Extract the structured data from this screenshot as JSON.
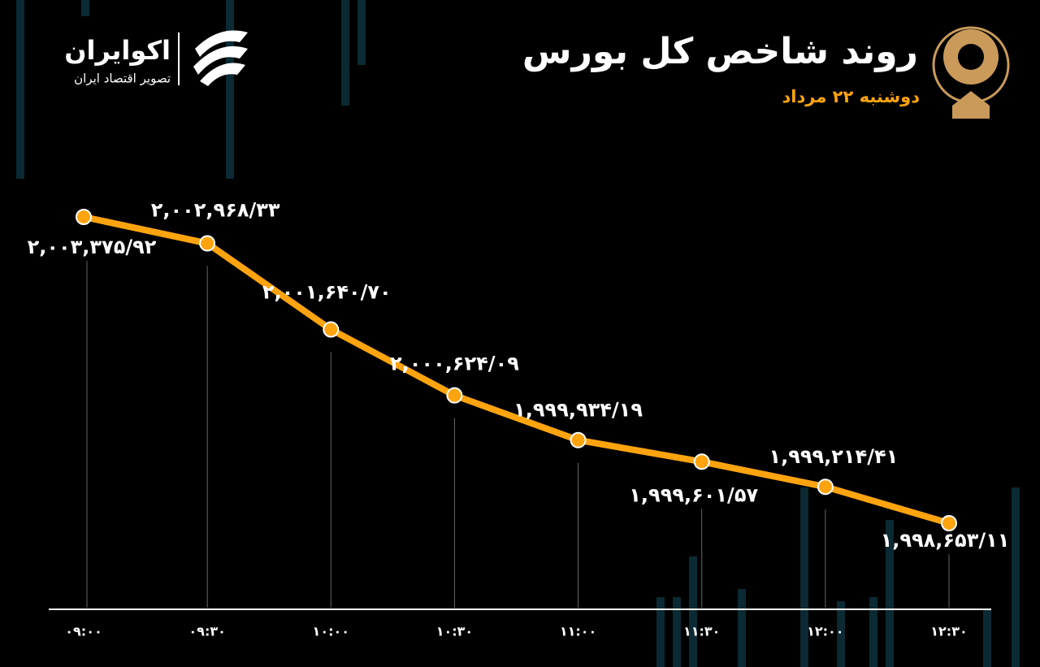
{
  "header": {
    "title": "روند شاخص کل بورس",
    "subtitle": "دوشنبه ۲۲ مرداد",
    "brand": "اکوایران",
    "brand_tagline": "تصویر اقتصاد ایران"
  },
  "chart_data": {
    "type": "line",
    "color": "#ffa40f",
    "categories": [
      "۰۹:۰۰",
      "۰۹:۳۰",
      "۱۰:۰۰",
      "۱۰:۳۰",
      "۱۱:۰۰",
      "۱۱:۳۰",
      "۱۲:۰۰",
      "۱۲:۳۰"
    ],
    "values": [
      2003375.92,
      2002968.33,
      2001640.7,
      2000624.09,
      1999934.19,
      1999601.57,
      1999214.41,
      1998653.11
    ],
    "value_labels": [
      "۲,۰۰۳,۳۷۵/۹۲",
      "۲,۰۰۲,۹۶۸/۳۳",
      "۲,۰۰۱,۶۴۰/۷۰",
      "۲,۰۰۰,۶۲۴/۰۹",
      "۱,۹۹۹,۹۳۴/۱۹",
      "۱,۹۹۹,۶۰۱/۵۷",
      "۱,۹۹۹,۲۱۴/۴۱",
      "۱,۹۹۸,۶۵۳/۱۱"
    ]
  }
}
